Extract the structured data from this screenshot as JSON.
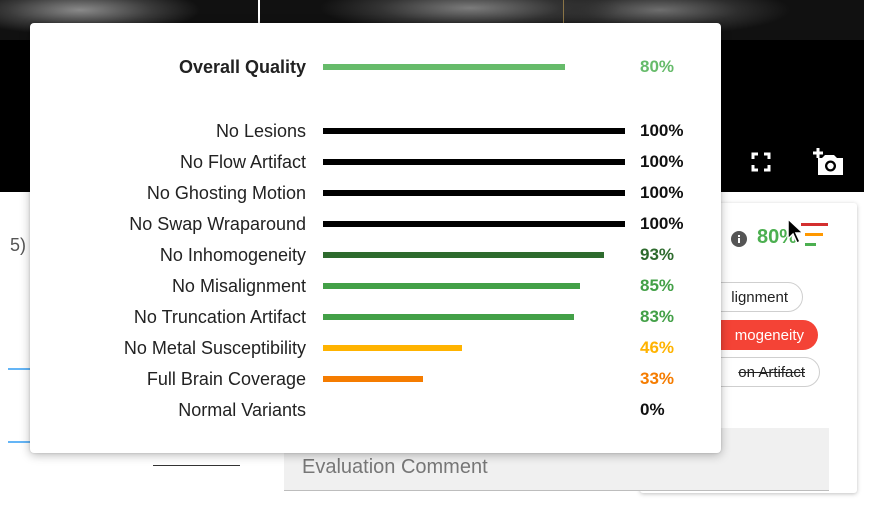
{
  "viewer": {
    "tools": [
      {
        "icon": "fullscreen-icon"
      },
      {
        "icon": "add-camera-icon"
      }
    ]
  },
  "left_panel": {
    "fragment": "5)"
  },
  "evaluation": {
    "score": "80%",
    "score_color": "#4caf50",
    "chips": [
      {
        "label": "lignment",
        "state": "outlined"
      },
      {
        "label": "mogeneity",
        "state": "selected",
        "color": "#f44336"
      },
      {
        "label": "on Artifact",
        "state": "struck"
      }
    ],
    "comment_placeholder": "Evaluation Comment"
  },
  "quality_popup": {
    "overall": {
      "label": "Overall Quality",
      "value": 0.8,
      "percent": "80%",
      "color": "#66bb6a"
    },
    "criteria": [
      {
        "label": "No Lesions",
        "value": 1.0,
        "percent": "100%",
        "color": "#000000"
      },
      {
        "label": "No Flow Artifact",
        "value": 1.0,
        "percent": "100%",
        "color": "#000000"
      },
      {
        "label": "No Ghosting Motion",
        "value": 1.0,
        "percent": "100%",
        "color": "#000000"
      },
      {
        "label": "No Swap Wraparound",
        "value": 1.0,
        "percent": "100%",
        "color": "#000000"
      },
      {
        "label": "No Inhomogeneity",
        "value": 0.93,
        "percent": "93%",
        "color": "#2e6b2e"
      },
      {
        "label": "No Misalignment",
        "value": 0.85,
        "percent": "85%",
        "color": "#43a047"
      },
      {
        "label": "No Truncation Artifact",
        "value": 0.83,
        "percent": "83%",
        "color": "#43a047"
      },
      {
        "label": "No Metal Susceptibility",
        "value": 0.46,
        "percent": "46%",
        "color": "#ffb300"
      },
      {
        "label": "Full Brain Coverage",
        "value": 0.33,
        "percent": "33%",
        "color": "#f57c00"
      },
      {
        "label": "Normal Variants",
        "value": 0.0,
        "percent": "0%",
        "color": "#000000"
      }
    ]
  }
}
